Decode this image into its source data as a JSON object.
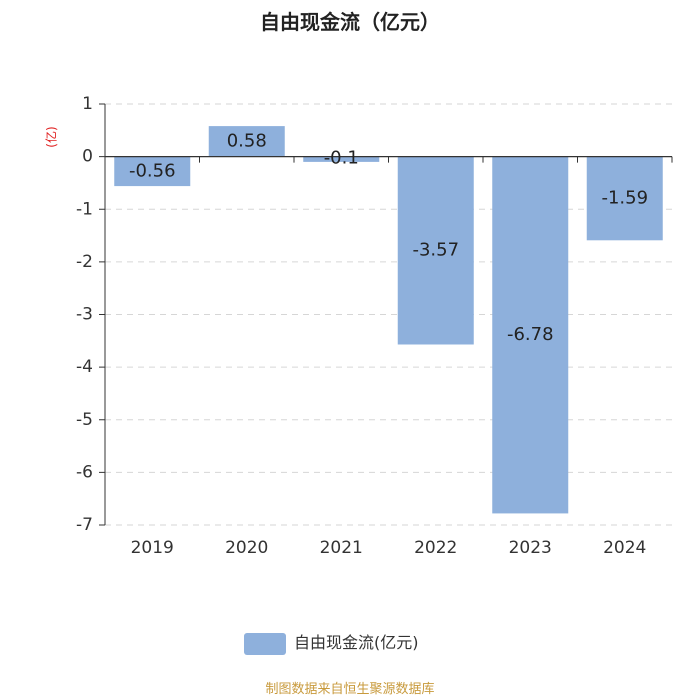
{
  "chart_data": {
    "type": "bar",
    "title": "自由现金流（亿元）",
    "unit_label": "(亿)",
    "categories": [
      "2019",
      "2020",
      "2021",
      "2022",
      "2023",
      "2024"
    ],
    "series": [
      {
        "name": "自由现金流(亿元)",
        "values": [
          -0.56,
          0.58,
          -0.1,
          -3.57,
          -6.78,
          -1.59
        ],
        "labels": [
          "-0.56",
          "0.58",
          "-0.1",
          "-3.57",
          "-6.78",
          "-1.59"
        ]
      }
    ],
    "yticks": [
      "1",
      "0",
      "-1",
      "-2",
      "-3",
      "-4",
      "-5",
      "-6",
      "-7"
    ],
    "ylim": [
      -7,
      1
    ],
    "grid": true,
    "legend_position": "bottom",
    "bar_color": "#8eb0dc"
  },
  "footer": "制图数据来自恒生聚源数据库"
}
